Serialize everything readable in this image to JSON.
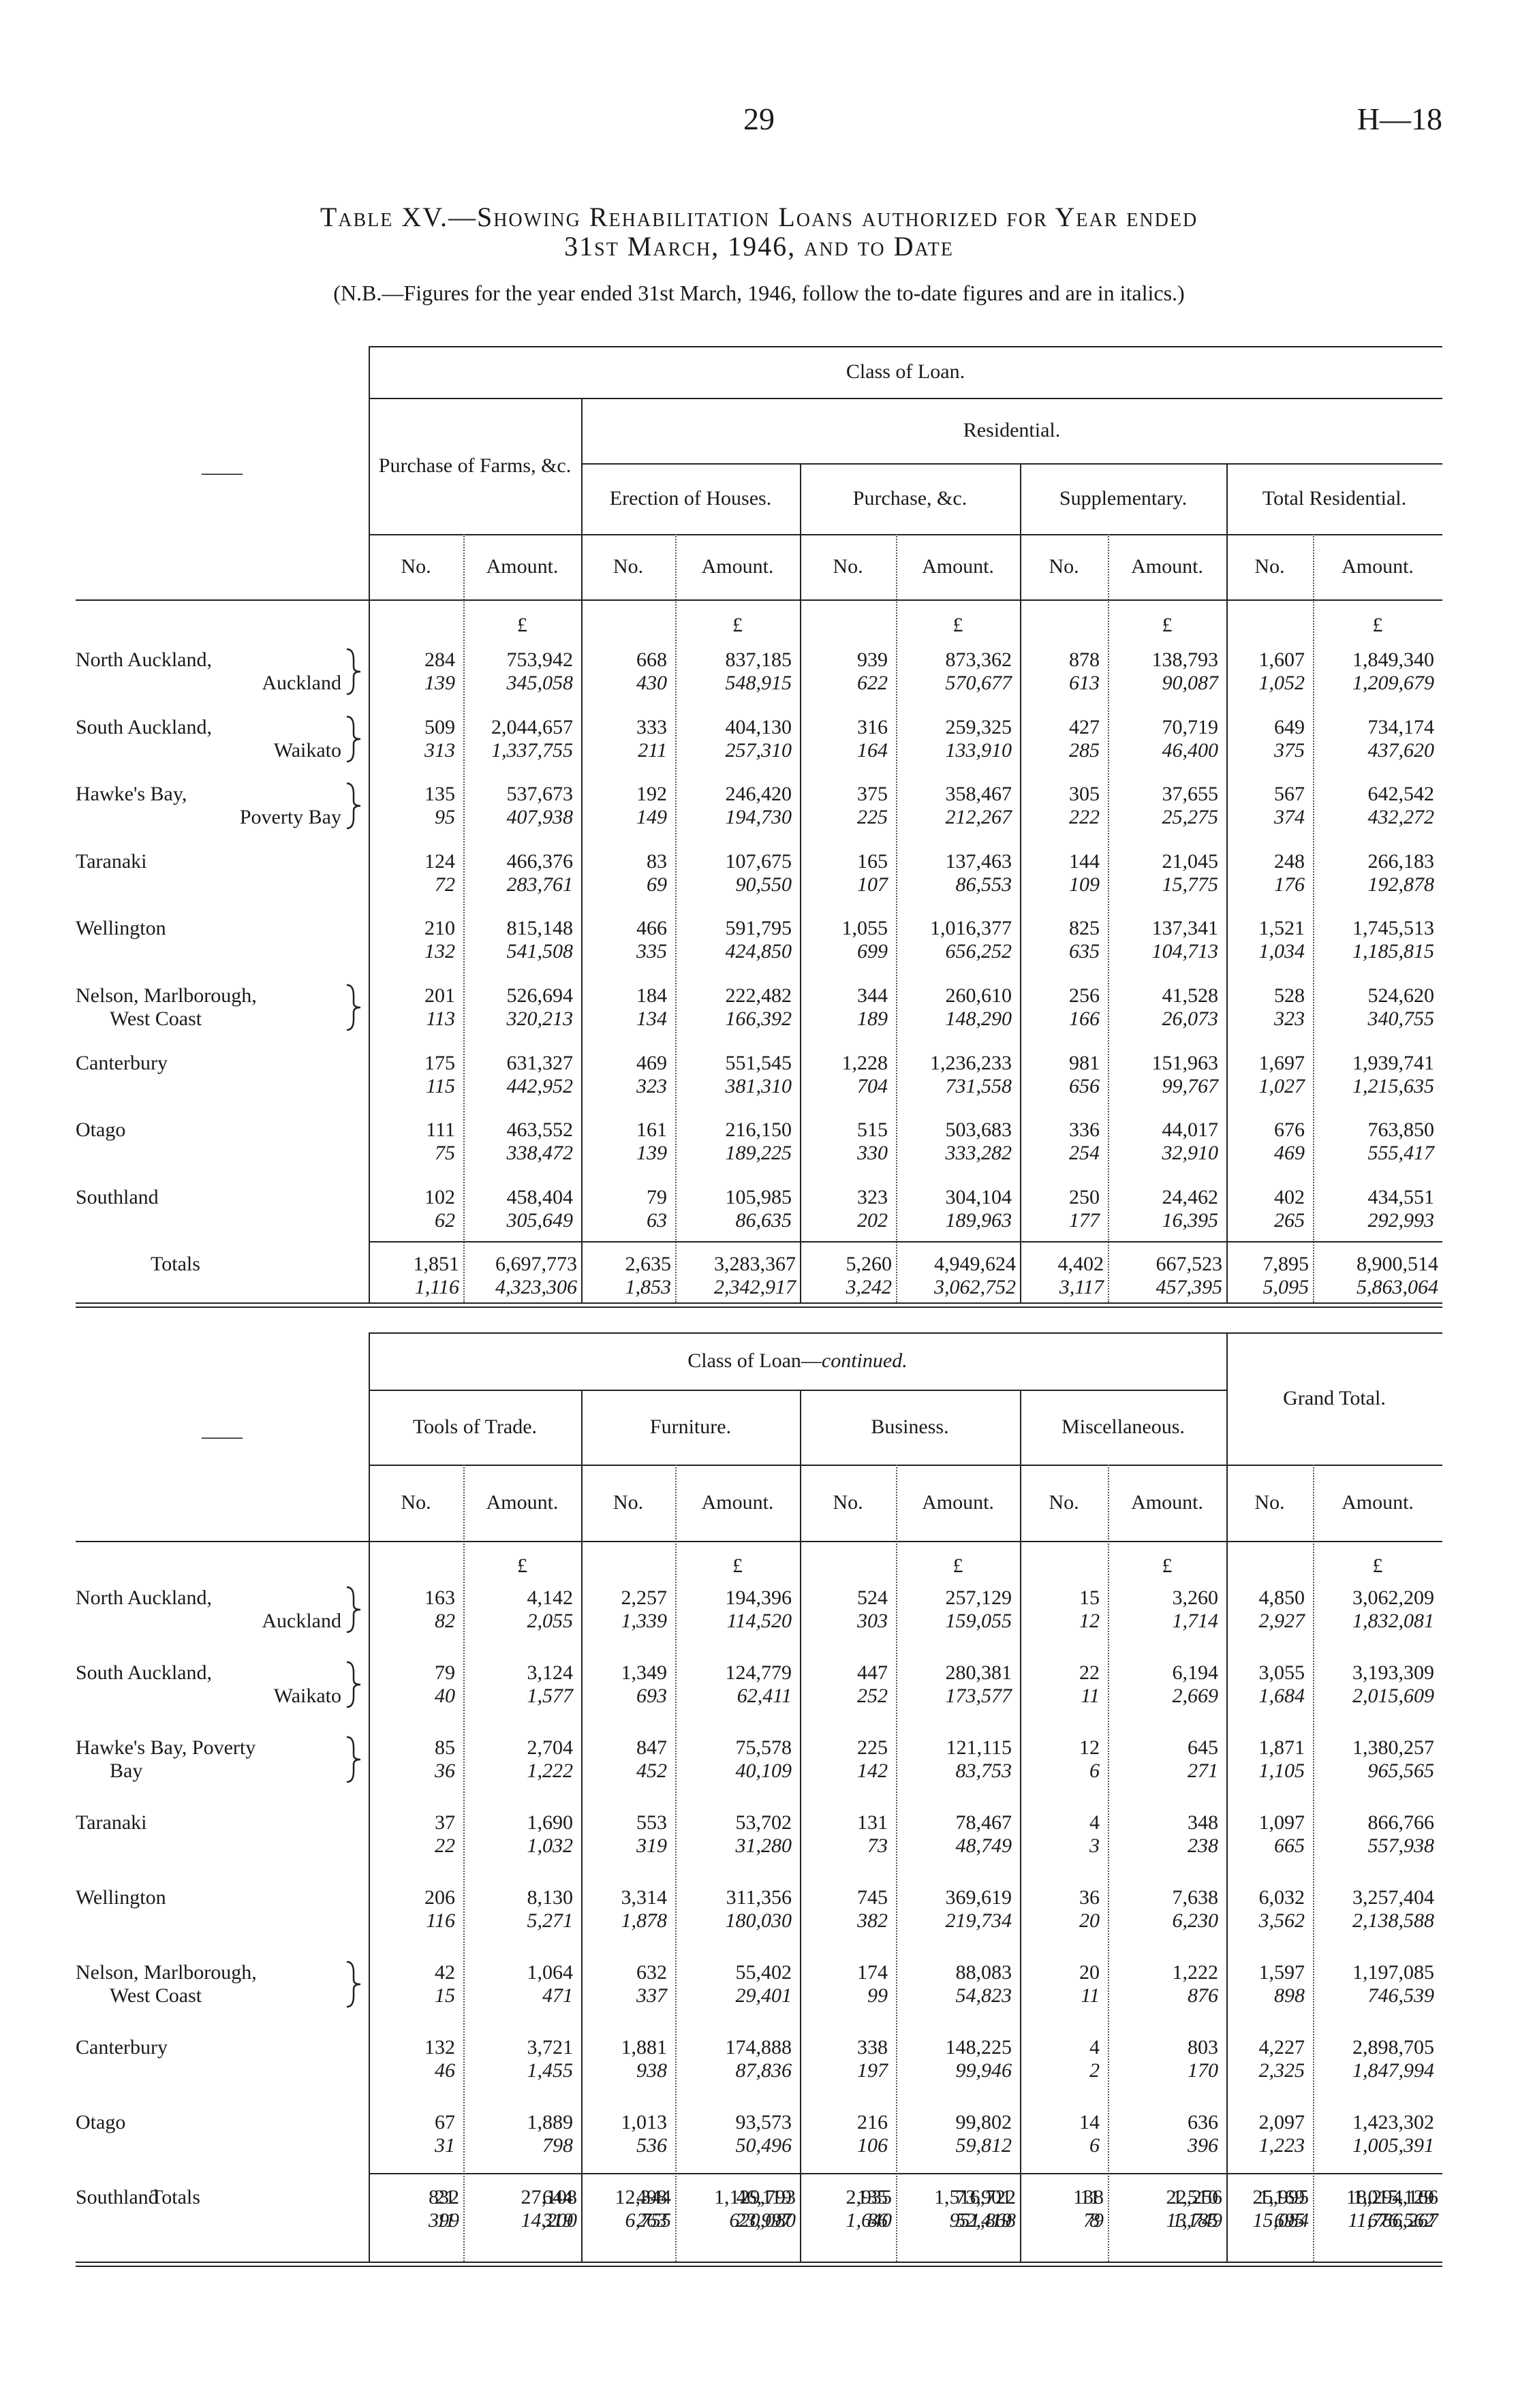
{
  "header": {
    "page_number": "29",
    "reference": "H—18"
  },
  "title": {
    "lines": [
      "Table XV.—Showing Rehabilitation Loans authorized for Year ended",
      "31st March, 1946, and to Date"
    ],
    "note": "(N.B.—Figures for the year ended 31st March, 1946, follow the to-date figures and are in italics.)"
  },
  "tables": [
    {
      "stub": "——",
      "span_header": "Class of Loan.",
      "farms_header": "Purchase of Farms, &c.",
      "residential_header": "Residential.",
      "groups": [
        "Erection of Houses.",
        "Purchase, &c.",
        "Supplementary.",
        "Total Residential."
      ],
      "col_no": "No.",
      "col_amount": "Amount.",
      "currency": "£",
      "rows": [
        {
          "district": [
            "North Auckland,",
            "Auckland"
          ],
          "cells": [
            [
              "284",
              "139",
              "753,942",
              "345,058"
            ],
            [
              "668",
              "430",
              "837,185",
              "548,915"
            ],
            [
              "939",
              "622",
              "873,362",
              "570,677"
            ],
            [
              "878",
              "613",
              "138,793",
              "90,087"
            ],
            [
              "1,607",
              "1,052",
              "1,849,340",
              "1,209,679"
            ]
          ]
        },
        {
          "district": [
            "South Auckland,",
            "Waikato"
          ],
          "cells": [
            [
              "509",
              "313",
              "2,044,657",
              "1,337,755"
            ],
            [
              "333",
              "211",
              "404,130",
              "257,310"
            ],
            [
              "316",
              "164",
              "259,325",
              "133,910"
            ],
            [
              "427",
              "285",
              "70,719",
              "46,400"
            ],
            [
              "649",
              "375",
              "734,174",
              "437,620"
            ]
          ]
        },
        {
          "district": [
            "Hawke's Bay,",
            "Poverty Bay"
          ],
          "cells": [
            [
              "135",
              "95",
              "537,673",
              "407,938"
            ],
            [
              "192",
              "149",
              "246,420",
              "194,730"
            ],
            [
              "375",
              "225",
              "358,467",
              "212,267"
            ],
            [
              "305",
              "222",
              "37,655",
              "25,275"
            ],
            [
              "567",
              "374",
              "642,542",
              "432,272"
            ]
          ]
        },
        {
          "district": [
            "Taranaki"
          ],
          "cells": [
            [
              "124",
              "72",
              "466,376",
              "283,761"
            ],
            [
              "83",
              "69",
              "107,675",
              "90,550"
            ],
            [
              "165",
              "107",
              "137,463",
              "86,553"
            ],
            [
              "144",
              "109",
              "21,045",
              "15,775"
            ],
            [
              "248",
              "176",
              "266,183",
              "192,878"
            ]
          ]
        },
        {
          "district": [
            "Wellington"
          ],
          "cells": [
            [
              "210",
              "132",
              "815,148",
              "541,508"
            ],
            [
              "466",
              "335",
              "591,795",
              "424,850"
            ],
            [
              "1,055",
              "699",
              "1,016,377",
              "656,252"
            ],
            [
              "825",
              "635",
              "137,341",
              "104,713"
            ],
            [
              "1,521",
              "1,034",
              "1,745,513",
              "1,185,815"
            ]
          ]
        },
        {
          "district": [
            "Nelson, Marlborough,",
            "West Coast"
          ],
          "cells": [
            [
              "201",
              "113",
              "526,694",
              "320,213"
            ],
            [
              "184",
              "134",
              "222,482",
              "166,392"
            ],
            [
              "344",
              "189",
              "260,610",
              "148,290"
            ],
            [
              "256",
              "166",
              "41,528",
              "26,073"
            ],
            [
              "528",
              "323",
              "524,620",
              "340,755"
            ]
          ]
        },
        {
          "district": [
            "Canterbury"
          ],
          "cells": [
            [
              "175",
              "115",
              "631,327",
              "442,952"
            ],
            [
              "469",
              "323",
              "551,545",
              "381,310"
            ],
            [
              "1,228",
              "704",
              "1,236,233",
              "731,558"
            ],
            [
              "981",
              "656",
              "151,963",
              "99,767"
            ],
            [
              "1,697",
              "1,027",
              "1,939,741",
              "1,215,635"
            ]
          ]
        },
        {
          "district": [
            "Otago"
          ],
          "cells": [
            [
              "111",
              "75",
              "463,552",
              "338,472"
            ],
            [
              "161",
              "139",
              "216,150",
              "189,225"
            ],
            [
              "515",
              "330",
              "503,683",
              "333,282"
            ],
            [
              "336",
              "254",
              "44,017",
              "32,910"
            ],
            [
              "676",
              "469",
              "763,850",
              "555,417"
            ]
          ]
        },
        {
          "district": [
            "Southland"
          ],
          "cells": [
            [
              "102",
              "62",
              "458,404",
              "305,649"
            ],
            [
              "79",
              "63",
              "105,985",
              "86,635"
            ],
            [
              "323",
              "202",
              "304,104",
              "189,963"
            ],
            [
              "250",
              "177",
              "24,462",
              "16,395"
            ],
            [
              "402",
              "265",
              "434,551",
              "292,993"
            ]
          ]
        }
      ],
      "totals": {
        "label": "Totals",
        "cells": [
          [
            "1,851",
            "1,116",
            "6,697,773",
            "4,323,306"
          ],
          [
            "2,635",
            "1,853",
            "3,283,367",
            "2,342,917"
          ],
          [
            "5,260",
            "3,242",
            "4,949,624",
            "3,062,752"
          ],
          [
            "4,402",
            "3,117",
            "667,523",
            "457,395"
          ],
          [
            "7,895",
            "5,095",
            "8,900,514",
            "5,863,064"
          ]
        ]
      }
    },
    {
      "stub": "——",
      "span_header": "Class of Loan—",
      "span_header_italic": "continued.",
      "grand_header": "Grand Total.",
      "groups": [
        "Tools of Trade.",
        "Furniture.",
        "Business.",
        "Miscellaneous."
      ],
      "col_no": "No.",
      "col_amount": "Amount.",
      "currency": "£",
      "rows": [
        {
          "district": [
            "North Auckland,",
            "Auckland"
          ],
          "cells": [
            [
              "163",
              "82",
              "4,142",
              "2,055"
            ],
            [
              "2,257",
              "1,339",
              "194,396",
              "114,520"
            ],
            [
              "524",
              "303",
              "257,129",
              "159,055"
            ],
            [
              "15",
              "12",
              "3,260",
              "1,714"
            ],
            [
              "4,850",
              "2,927",
              "3,062,209",
              "1,832,081"
            ]
          ]
        },
        {
          "district": [
            "South Auckland,",
            "Waikato"
          ],
          "cells": [
            [
              "79",
              "40",
              "3,124",
              "1,577"
            ],
            [
              "1,349",
              "693",
              "124,779",
              "62,411"
            ],
            [
              "447",
              "252",
              "280,381",
              "173,577"
            ],
            [
              "22",
              "11",
              "6,194",
              "2,669"
            ],
            [
              "3,055",
              "1,684",
              "3,193,309",
              "2,015,609"
            ]
          ]
        },
        {
          "district": [
            "Hawke's Bay, Poverty",
            "Bay"
          ],
          "cells": [
            [
              "85",
              "36",
              "2,704",
              "1,222"
            ],
            [
              "847",
              "452",
              "75,578",
              "40,109"
            ],
            [
              "225",
              "142",
              "121,115",
              "83,753"
            ],
            [
              "12",
              "6",
              "645",
              "271"
            ],
            [
              "1,871",
              "1,105",
              "1,380,257",
              "965,565"
            ]
          ]
        },
        {
          "district": [
            "Taranaki"
          ],
          "cells": [
            [
              "37",
              "22",
              "1,690",
              "1,032"
            ],
            [
              "553",
              "319",
              "53,702",
              "31,280"
            ],
            [
              "131",
              "73",
              "78,467",
              "48,749"
            ],
            [
              "4",
              "3",
              "348",
              "238"
            ],
            [
              "1,097",
              "665",
              "866,766",
              "557,938"
            ]
          ]
        },
        {
          "district": [
            "Wellington"
          ],
          "cells": [
            [
              "206",
              "116",
              "8,130",
              "5,271"
            ],
            [
              "3,314",
              "1,878",
              "311,356",
              "180,030"
            ],
            [
              "745",
              "382",
              "369,619",
              "219,734"
            ],
            [
              "36",
              "20",
              "7,638",
              "6,230"
            ],
            [
              "6,032",
              "3,562",
              "3,257,404",
              "2,138,588"
            ]
          ]
        },
        {
          "district": [
            "Nelson, Marlborough,",
            "West Coast"
          ],
          "cells": [
            [
              "42",
              "15",
              "1,064",
              "471"
            ],
            [
              "632",
              "337",
              "55,402",
              "29,401"
            ],
            [
              "174",
              "99",
              "88,083",
              "54,823"
            ],
            [
              "20",
              "11",
              "1,222",
              "876"
            ],
            [
              "1,597",
              "898",
              "1,197,085",
              "746,539"
            ]
          ]
        },
        {
          "district": [
            "Canterbury"
          ],
          "cells": [
            [
              "132",
              "46",
              "3,721",
              "1,455"
            ],
            [
              "1,881",
              "938",
              "174,888",
              "87,836"
            ],
            [
              "338",
              "197",
              "148,225",
              "99,946"
            ],
            [
              "4",
              "2",
              "803",
              "170"
            ],
            [
              "4,227",
              "2,325",
              "2,898,705",
              "1,847,994"
            ]
          ]
        },
        {
          "district": [
            "Otago"
          ],
          "cells": [
            [
              "67",
              "31",
              "1,889",
              "798"
            ],
            [
              "1,013",
              "536",
              "93,573",
              "50,496"
            ],
            [
              "216",
              "106",
              "99,802",
              "59,812"
            ],
            [
              "14",
              "6",
              "636",
              "396"
            ],
            [
              "2,097",
              "1,223",
              "1,423,302",
              "1,005,391"
            ]
          ]
        },
        {
          "district": [
            "Southland"
          ],
          "cells": [
            [
              "21",
              "11",
              "644",
              "319"
            ],
            [
              "498",
              "263",
              "46,119",
              "23,997"
            ],
            [
              "135",
              "86",
              "73,901",
              "52,419"
            ],
            [
              "11",
              "8",
              "1,510",
              "1,185"
            ],
            [
              "1,169",
              "695",
              "1,015,129",
              "676,562"
            ]
          ]
        }
      ],
      "totals": {
        "label": "Totals",
        "cells": [
          [
            "832",
            "399",
            "27,108",
            "14,200"
          ],
          [
            "12,344",
            "6,755",
            "1,129,793",
            "620,080"
          ],
          [
            "2,935",
            "1,640",
            "1,516,722",
            "951,868"
          ],
          [
            "138",
            "79",
            "22,256",
            "13,749"
          ],
          [
            "25,995",
            "15,084",
            "18,294,166",
            "11,786,267"
          ]
        ]
      }
    }
  ]
}
